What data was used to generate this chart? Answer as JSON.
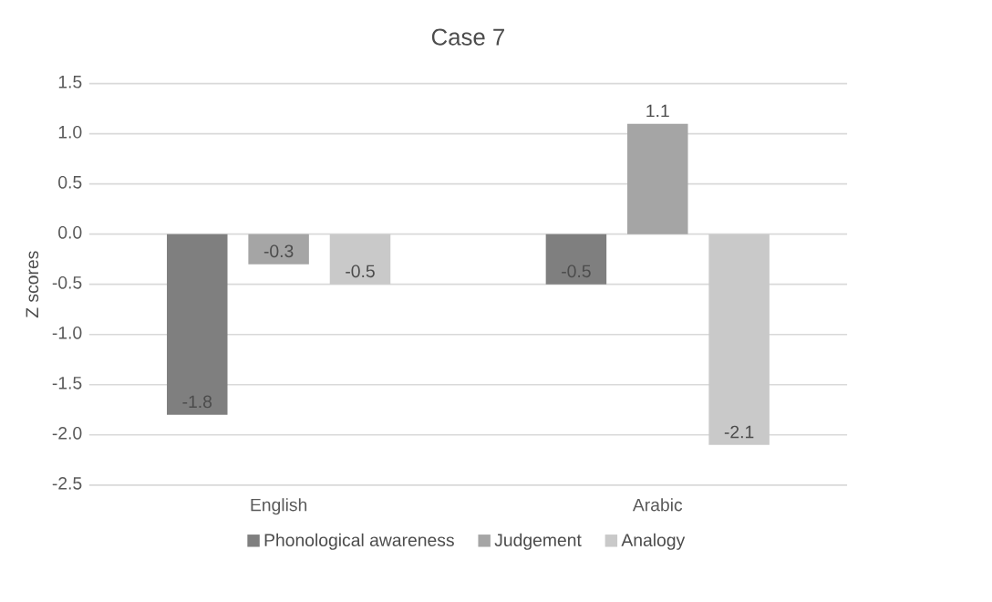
{
  "chart_data": {
    "type": "bar",
    "title": "Case 7",
    "ylabel": "Z scores",
    "categories": [
      "English",
      "Arabic"
    ],
    "series": [
      {
        "name": "Phonological awareness",
        "color": "#7f7f7f",
        "values": [
          -1.8,
          -0.5
        ]
      },
      {
        "name": "Judgement",
        "color": "#a5a5a5",
        "values": [
          -0.3,
          1.1
        ]
      },
      {
        "name": "Analogy",
        "color": "#c9c9c9",
        "values": [
          -0.5,
          -2.1
        ]
      }
    ],
    "ylim": [
      -2.5,
      1.5
    ],
    "yticks": [
      1.5,
      {
        "value": 1.0,
        "label": "1.0"
      },
      0.5,
      {
        "value": 0,
        "label": "0.0"
      },
      -0.5,
      {
        "value": -1.0,
        "label": "-1.0"
      },
      -1.5,
      {
        "value": -2.0,
        "label": "-2.0"
      },
      -2.5
    ],
    "grid": "y",
    "legend": "bottom",
    "data_labels": true
  }
}
